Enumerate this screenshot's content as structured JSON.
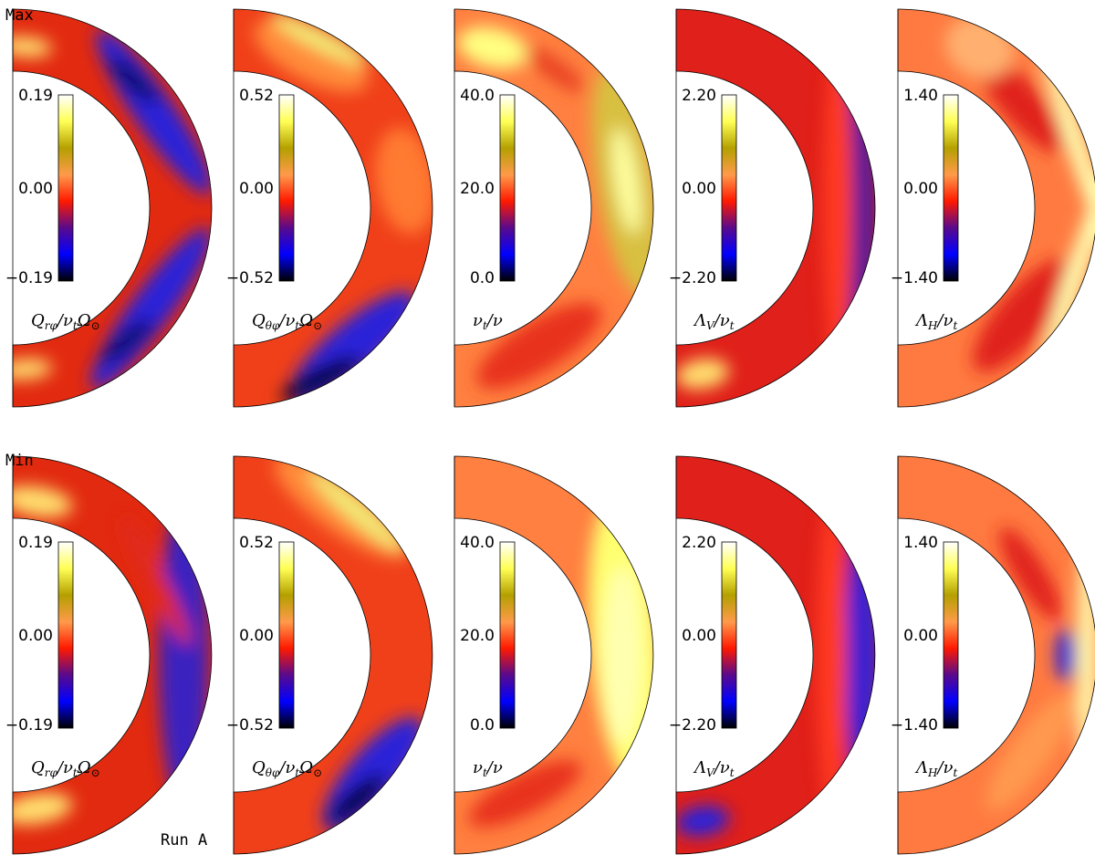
{
  "figure": {
    "row_labels": [
      "Max",
      "Min"
    ],
    "run_label": "Run A",
    "panels": [
      {
        "id": "qrphi",
        "quantity": "Q_rφ / ν_t Ω_⊙",
        "ticks": [
          "0.19",
          "0.00",
          "−0.19"
        ],
        "label_parts": [
          [
            "Q",
            ""
          ],
          [
            "rφ",
            "sub"
          ],
          [
            "/ν",
            ""
          ],
          [
            "t",
            "sub"
          ],
          [
            "Ω",
            ""
          ],
          [
            "⊙",
            "sub"
          ]
        ]
      },
      {
        "id": "qthphi",
        "quantity": "Q_θφ / ν_t Ω_⊙",
        "ticks": [
          "0.52",
          "0.00",
          "−0.52"
        ],
        "label_parts": [
          [
            "Q",
            ""
          ],
          [
            "θφ",
            "sub"
          ],
          [
            "/ν",
            ""
          ],
          [
            "t",
            "sub"
          ],
          [
            "Ω",
            ""
          ],
          [
            "⊙",
            "sub"
          ]
        ]
      },
      {
        "id": "nut",
        "quantity": "ν_t / ν",
        "ticks": [
          "40.0",
          "20.0",
          "0.0"
        ],
        "label_parts": [
          [
            "ν",
            ""
          ],
          [
            "t",
            "sub"
          ],
          [
            "/ν",
            ""
          ]
        ]
      },
      {
        "id": "lambdav",
        "quantity": "Λ_V / ν_t",
        "ticks": [
          "2.20",
          "0.00",
          "−2.20"
        ],
        "label_parts": [
          [
            "Λ",
            ""
          ],
          [
            "V",
            "sub"
          ],
          [
            "/ν",
            ""
          ],
          [
            "t",
            "sub"
          ]
        ]
      },
      {
        "id": "lambdah",
        "quantity": "Λ_H / ν_t",
        "ticks": [
          "1.40",
          "0.00",
          "−1.40"
        ],
        "label_parts": [
          [
            "Λ",
            ""
          ],
          [
            "H",
            "sub"
          ],
          [
            "/ν",
            ""
          ],
          [
            "t",
            "sub"
          ]
        ]
      }
    ],
    "colormap": [
      "#000000",
      "#0000ff",
      "#5a0a8c",
      "#ff1a00",
      "#ff9a4a",
      "#b4a000",
      "#ffff55",
      "#ffffff"
    ],
    "panel_patterns": {
      "max": [
        {
          "bg": "#e22a10",
          "blobs": [
            [
              0.55,
              0.38,
              0.2,
              0.55,
              "#2a20d8"
            ],
            [
              0.55,
              -0.4,
              0.2,
              0.55,
              "#2a20d8"
            ],
            [
              0.62,
              0.52,
              0.06,
              0.18,
              "#000020"
            ],
            [
              0.62,
              -0.55,
              0.06,
              0.18,
              "#000020"
            ],
            [
              0.4,
              0.95,
              0.1,
              0.15,
              "#ffe070"
            ],
            [
              0.4,
              -0.95,
              0.1,
              0.15,
              "#ffe070"
            ]
          ]
        },
        {
          "bg": "#f0401a",
          "blobs": [
            [
              0.55,
              0.7,
              0.25,
              0.35,
              "#ff8c3a"
            ],
            [
              0.85,
              0.7,
              0.1,
              0.3,
              "#f0f07a"
            ],
            [
              0.75,
              -0.55,
              0.25,
              0.45,
              "#2a20d8"
            ],
            [
              0.88,
              -0.7,
              0.1,
              0.25,
              "#000000"
            ],
            [
              0.6,
              0.1,
              0.3,
              0.3,
              "#ff7a30"
            ]
          ]
        },
        {
          "bg": "#ff8040",
          "blobs": [
            [
              0.6,
              0.1,
              0.3,
              0.65,
              "#d8c040"
            ],
            [
              0.6,
              0.1,
              0.12,
              0.3,
              "#ffffa0"
            ],
            [
              0.4,
              -0.65,
              0.25,
              0.4,
              "#e8301a"
            ],
            [
              0.45,
              0.85,
              0.2,
              0.2,
              "#ffff80"
            ],
            [
              0.55,
              0.6,
              0.1,
              0.2,
              "#e84020"
            ]
          ]
        },
        {
          "bg": "#e0201a",
          "blobs": [
            [
              0.7,
              0.0,
              0.2,
              0.85,
              "#4a1c9c"
            ],
            [
              0.4,
              0.0,
              0.15,
              0.9,
              "#ff3a20"
            ],
            [
              0.5,
              -0.9,
              0.15,
              0.15,
              "#ffe070"
            ]
          ]
        },
        {
          "bg": "#ff7a40",
          "blobs": [
            [
              0.4,
              0.45,
              0.2,
              0.35,
              "#e0201a"
            ],
            [
              0.45,
              -0.45,
              0.25,
              0.4,
              "#e0201a"
            ],
            [
              0.85,
              0.2,
              0.1,
              0.7,
              "#ffffb0"
            ],
            [
              0.85,
              -0.2,
              0.1,
              0.7,
              "#ffffb0"
            ],
            [
              0.7,
              0.7,
              0.3,
              0.2,
              "#ffb070"
            ]
          ]
        }
      ],
      "min": [
        {
          "bg": "#e22a10",
          "blobs": [
            [
              0.55,
              0.0,
              0.25,
              0.85,
              "#3a24c0"
            ],
            [
              0.4,
              0.3,
              0.1,
              0.4,
              "#e02a20"
            ],
            [
              0.3,
              0.9,
              0.15,
              0.2,
              "#ffe070"
            ],
            [
              0.3,
              -0.9,
              0.15,
              0.2,
              "#ffe070"
            ]
          ]
        },
        {
          "bg": "#f0401a",
          "blobs": [
            [
              0.75,
              0.6,
              0.25,
              0.45,
              "#ff8c3a"
            ],
            [
              0.85,
              0.55,
              0.1,
              0.35,
              "#f0f07a"
            ],
            [
              0.75,
              -0.45,
              0.25,
              0.4,
              "#2a20d8"
            ],
            [
              0.85,
              -0.55,
              0.1,
              0.2,
              "#000000"
            ]
          ]
        },
        {
          "bg": "#ff8040",
          "blobs": [
            [
              0.55,
              0.05,
              0.35,
              0.8,
              "#ffff70"
            ],
            [
              0.5,
              0.0,
              0.2,
              0.5,
              "#ffffb0"
            ],
            [
              0.3,
              -0.7,
              0.2,
              0.35,
              "#e8301a"
            ]
          ]
        },
        {
          "bg": "#e0201a",
          "blobs": [
            [
              0.8,
              0.0,
              0.18,
              0.8,
              "#3a22d0"
            ],
            [
              0.3,
              0.0,
              0.15,
              0.9,
              "#ff3a20"
            ],
            [
              0.5,
              -0.9,
              0.15,
              0.15,
              "#2a20d8"
            ]
          ]
        },
        {
          "bg": "#ff7a40",
          "blobs": [
            [
              0.3,
              0.35,
              0.15,
              0.3,
              "#e0201a"
            ],
            [
              0.45,
              -0.4,
              0.2,
              0.4,
              "#ff9a50"
            ],
            [
              0.85,
              0.0,
              0.1,
              0.8,
              "#ffffb0"
            ],
            [
              0.5,
              0.0,
              0.1,
              0.15,
              "#2a20d8"
            ]
          ]
        }
      ]
    }
  }
}
